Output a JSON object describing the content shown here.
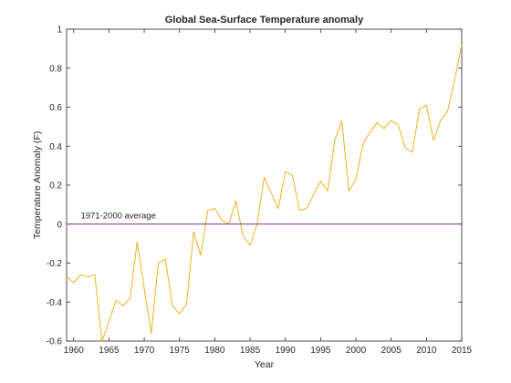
{
  "chart_data": {
    "type": "line",
    "title": "Global Sea-Surface Temperature anomaly",
    "xlabel": "Year",
    "ylabel": "Temperature Anomaly (F)",
    "xlim": [
      1959,
      2015
    ],
    "ylim": [
      -0.6,
      1
    ],
    "xticks": [
      1960,
      1965,
      1970,
      1975,
      1980,
      1985,
      1990,
      1995,
      2000,
      2005,
      2010,
      2015
    ],
    "yticks": [
      -0.6,
      -0.4,
      -0.2,
      0,
      0.2,
      0.4,
      0.6,
      0.8,
      1
    ],
    "ytick_labels": [
      "-0.6",
      "-0.4",
      "-0.2",
      "0",
      "0.2",
      "0.4",
      "0.6",
      "0.8",
      "1"
    ],
    "grid": false,
    "series": [
      {
        "color": "#EDB120",
        "x": [
          1959,
          1960,
          1961,
          1962,
          1963,
          1964,
          1965,
          1966,
          1967,
          1968,
          1969,
          1970,
          1971,
          1972,
          1973,
          1974,
          1975,
          1976,
          1977,
          1978,
          1979,
          1980,
          1981,
          1982,
          1983,
          1984,
          1985,
          1986,
          1987,
          1988,
          1989,
          1990,
          1991,
          1992,
          1993,
          1994,
          1995,
          1996,
          1997,
          1998,
          1999,
          2000,
          2001,
          2002,
          2003,
          2004,
          2005,
          2006,
          2007,
          2008,
          2009,
          2010,
          2011,
          2012,
          2013,
          2014,
          2015
        ],
        "values": [
          -0.27,
          -0.3,
          -0.26,
          -0.27,
          -0.26,
          -0.6,
          -0.5,
          -0.39,
          -0.42,
          -0.38,
          -0.09,
          -0.33,
          -0.56,
          -0.2,
          -0.18,
          -0.42,
          -0.46,
          -0.41,
          -0.04,
          -0.16,
          0.07,
          0.08,
          0.02,
          0.0,
          0.12,
          -0.06,
          -0.11,
          0.0,
          0.24,
          0.16,
          0.08,
          0.27,
          0.25,
          0.07,
          0.08,
          0.15,
          0.22,
          0.17,
          0.43,
          0.53,
          0.17,
          0.23,
          0.41,
          0.47,
          0.52,
          0.49,
          0.53,
          0.51,
          0.39,
          0.37,
          0.59,
          0.61,
          0.43,
          0.53,
          0.58,
          0.74,
          0.92
        ]
      },
      {
        "name": "1971-2000 average",
        "color": "#7E2F8E",
        "x": [
          1959,
          2015
        ],
        "values": [
          0,
          0
        ]
      }
    ],
    "annotation": {
      "text": "1971-2000 average",
      "x": 1961,
      "y": 0.03
    }
  }
}
